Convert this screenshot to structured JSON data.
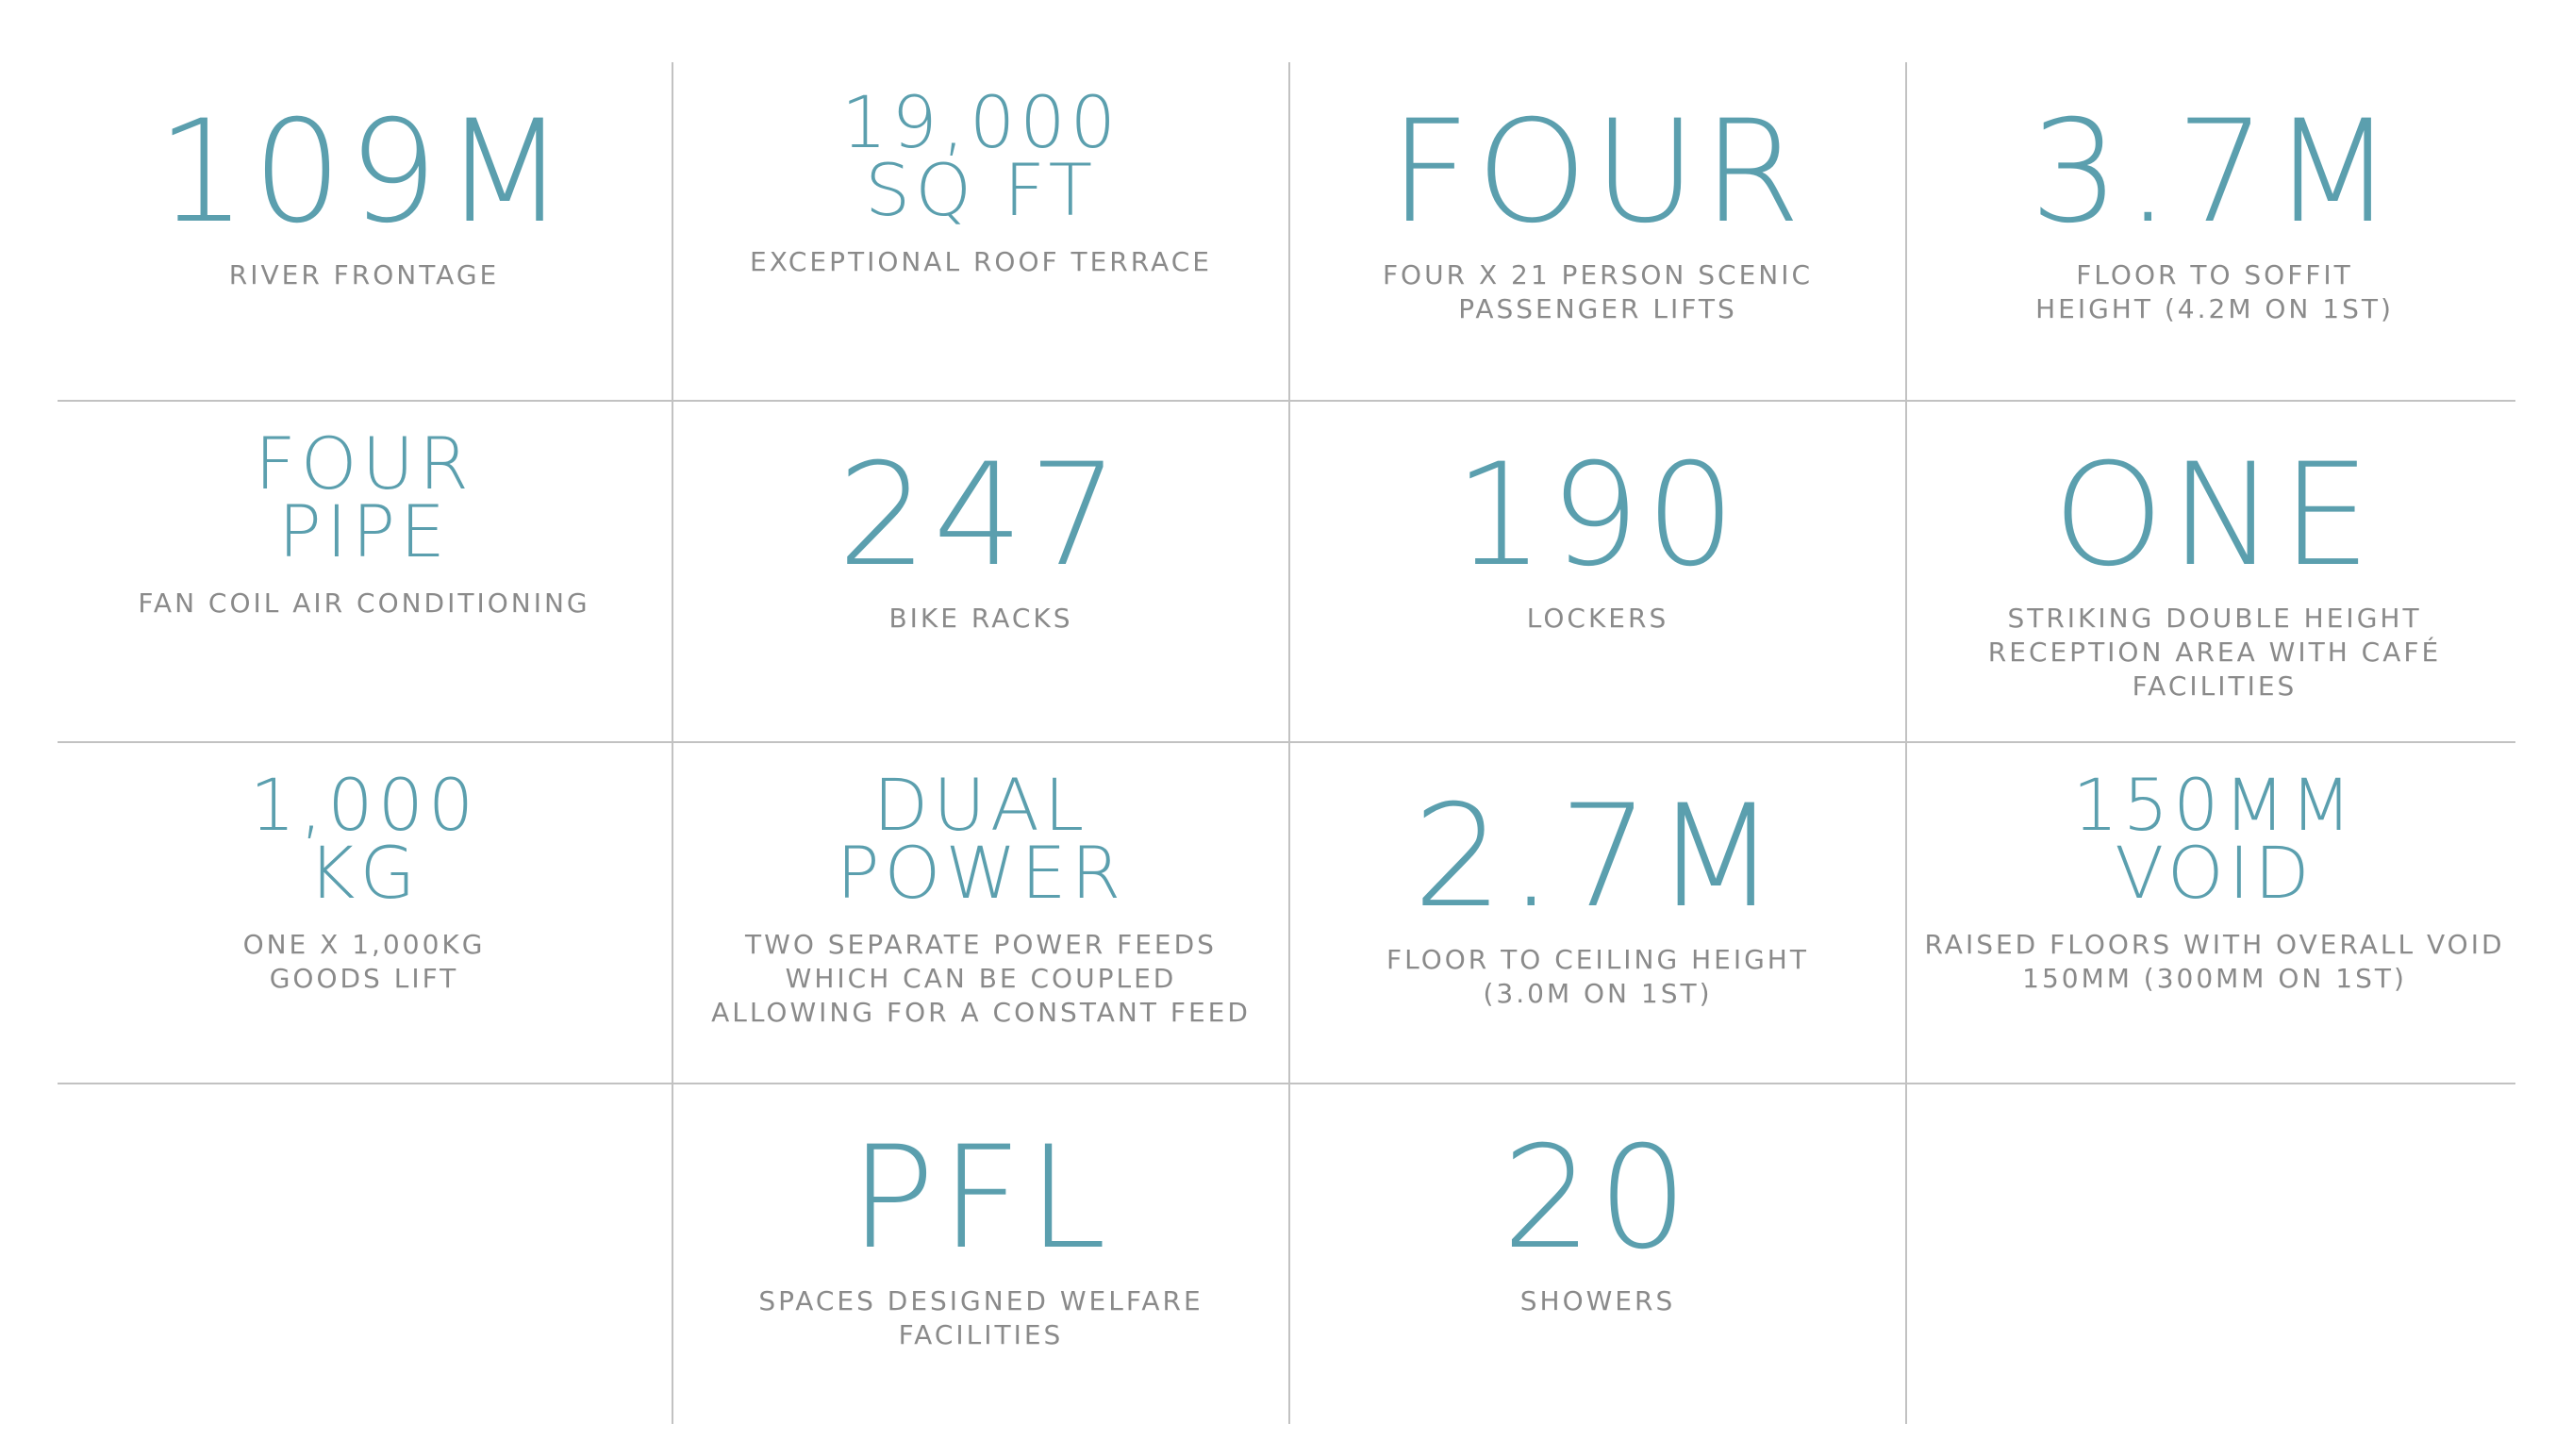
{
  "colors": {
    "accent": "#5b9fae",
    "caption": "#8a8a8a",
    "rule": "#c2c2c2"
  },
  "rows": [
    [
      {
        "value": "109M",
        "caption": "RIVER FRONTAGE"
      },
      {
        "value": "19,000\nSQ FT",
        "caption": "EXCEPTIONAL ROOF TERRACE"
      },
      {
        "value": "FOUR",
        "caption": "FOUR X 21 PERSON SCENIC\nPASSENGER LIFTS"
      },
      {
        "value": "3.7M",
        "caption": "FLOOR TO SOFFIT\nHEIGHT (4.2M ON 1ST)"
      }
    ],
    [
      {
        "value": "FOUR\nPIPE",
        "caption": "FAN COIL AIR CONDITIONING"
      },
      {
        "value": "247",
        "caption": "BIKE RACKS"
      },
      {
        "value": "190",
        "caption": "LOCKERS"
      },
      {
        "value": "ONE",
        "caption": "STRIKING DOUBLE HEIGHT\nRECEPTION AREA WITH CAFÉ\nFACILITIES"
      }
    ],
    [
      {
        "value": "1,000\nKG",
        "caption": "ONE X 1,000KG\nGOODS LIFT"
      },
      {
        "value": "DUAL\nPOWER",
        "caption": "TWO SEPARATE POWER FEEDS\nWHICH CAN BE COUPLED\nALLOWING FOR A CONSTANT FEED"
      },
      {
        "value": "2.7M",
        "caption": "FLOOR TO CEILING HEIGHT\n(3.0M ON 1ST)"
      },
      {
        "value": "150MM\nVOID",
        "caption": "RAISED FLOORS WITH OVERALL VOID\n150MM (300MM ON 1ST)"
      }
    ],
    [
      {
        "value": "",
        "caption": ""
      },
      {
        "value": "PFL",
        "caption": "SPACES DESIGNED WELFARE\nFACILITIES"
      },
      {
        "value": "20",
        "caption": "SHOWERS"
      },
      {
        "value": "",
        "caption": ""
      }
    ]
  ]
}
